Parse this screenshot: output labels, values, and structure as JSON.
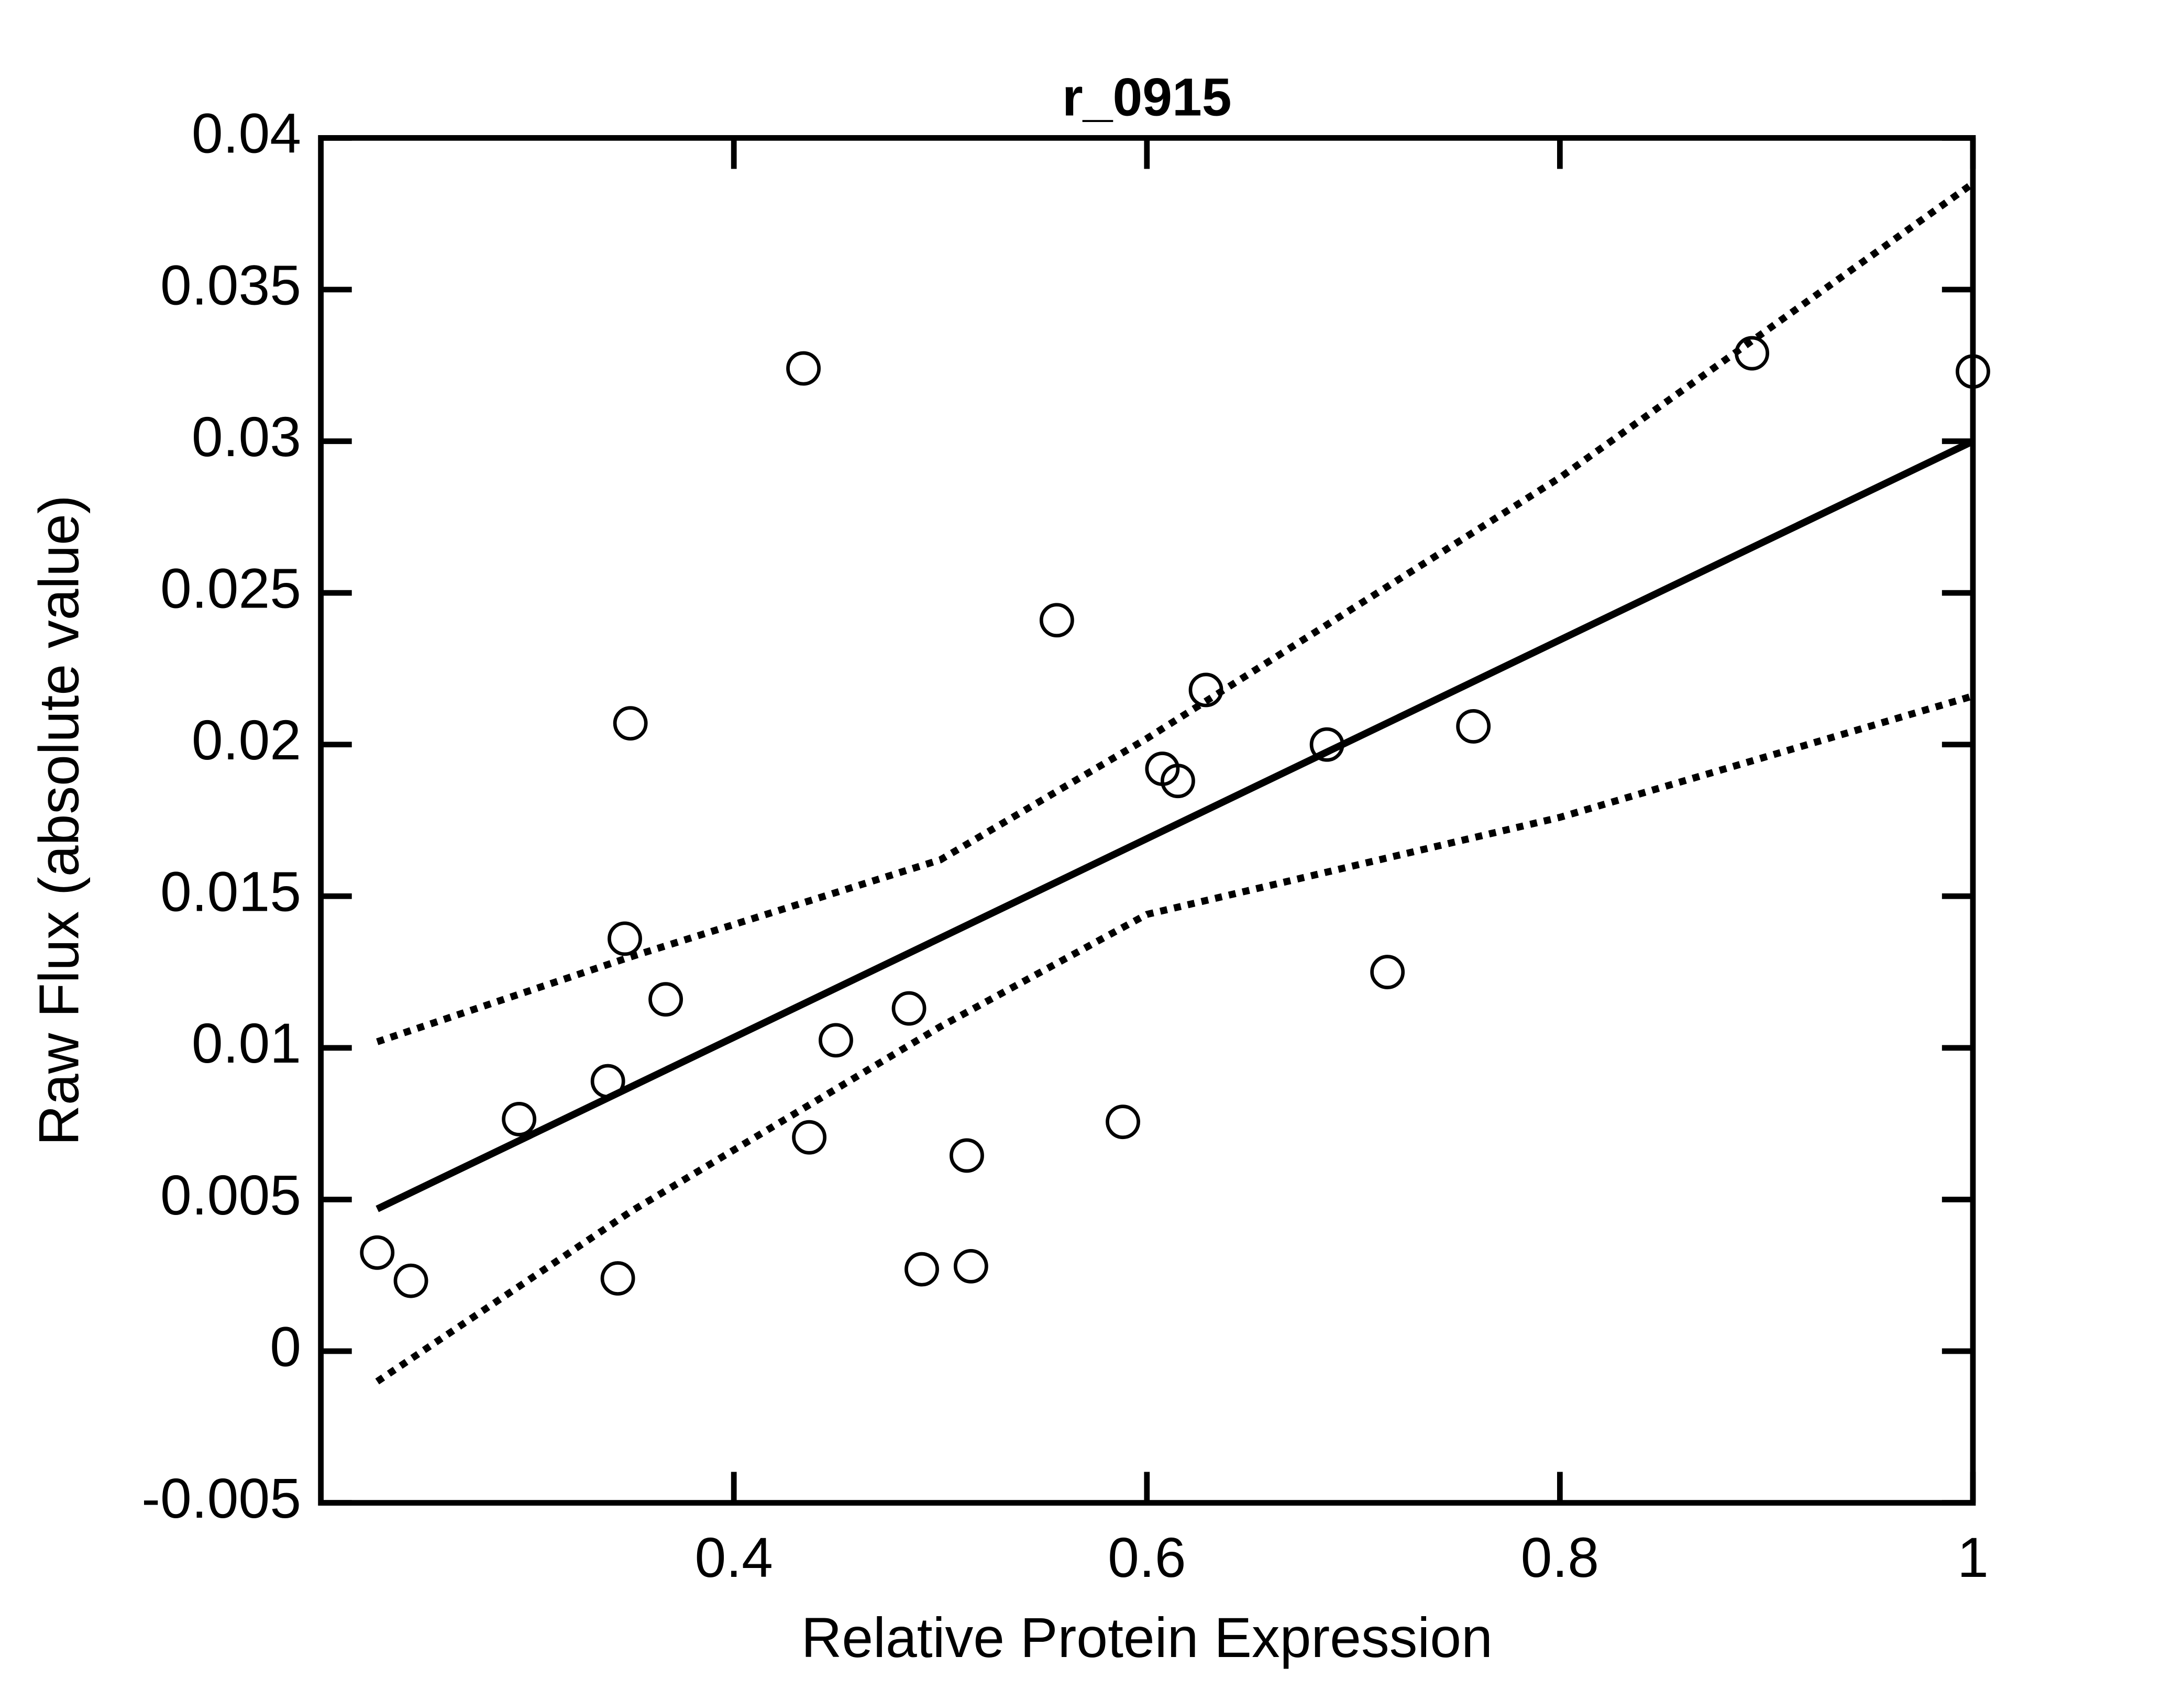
{
  "chart_data": {
    "type": "scatter",
    "title": "r_0915",
    "xlabel": "Relative Protein Expression",
    "ylabel": "Raw Flux (absolute value)",
    "xlim": [
      0.2,
      1
    ],
    "ylim": [
      -0.005,
      0.04
    ],
    "xticks": [
      0.4,
      0.6,
      0.8,
      1
    ],
    "yticks": [
      -0.005,
      0,
      0.005,
      0.01,
      0.015,
      0.02,
      0.025,
      0.03,
      0.035,
      0.04
    ],
    "color": "#000000",
    "x": [
      0.2273,
      0.2436,
      0.296,
      0.339,
      0.3438,
      0.3472,
      0.3499,
      0.367,
      0.4337,
      0.4365,
      0.4494,
      0.4848,
      0.491,
      0.5128,
      0.5148,
      0.5564,
      0.5884,
      0.6075,
      0.615,
      0.6286,
      0.6872,
      0.7165,
      0.7581,
      0.893,
      1.0
    ],
    "values": [
      0.00325,
      0.00232,
      0.00765,
      0.0089,
      0.0024,
      0.0136,
      0.0207,
      0.0116,
      0.0324,
      0.00705,
      0.01025,
      0.0113,
      0.0027,
      0.00645,
      0.0028,
      0.0241,
      0.00756,
      0.0192,
      0.0188,
      0.0218,
      0.02,
      0.0125,
      0.0206,
      0.0329,
      0.0323
    ],
    "lines": [
      {
        "style": "solid",
        "x": [
          0.2273,
          1.0
        ],
        "values": [
          0.00469,
          0.03
        ]
      },
      {
        "style": "dotted",
        "x": [
          0.2273,
          0.35,
          0.5,
          0.6,
          0.8,
          1.0
        ],
        "values": [
          0.0102,
          0.013,
          0.0162,
          0.0202,
          0.0288,
          0.0385
        ]
      },
      {
        "style": "dotted",
        "x": [
          0.2273,
          0.35,
          0.5,
          0.6,
          0.8,
          1.0
        ],
        "values": [
          -0.001,
          0.0046,
          0.0107,
          0.0144,
          0.0176,
          0.0216
        ]
      }
    ]
  }
}
